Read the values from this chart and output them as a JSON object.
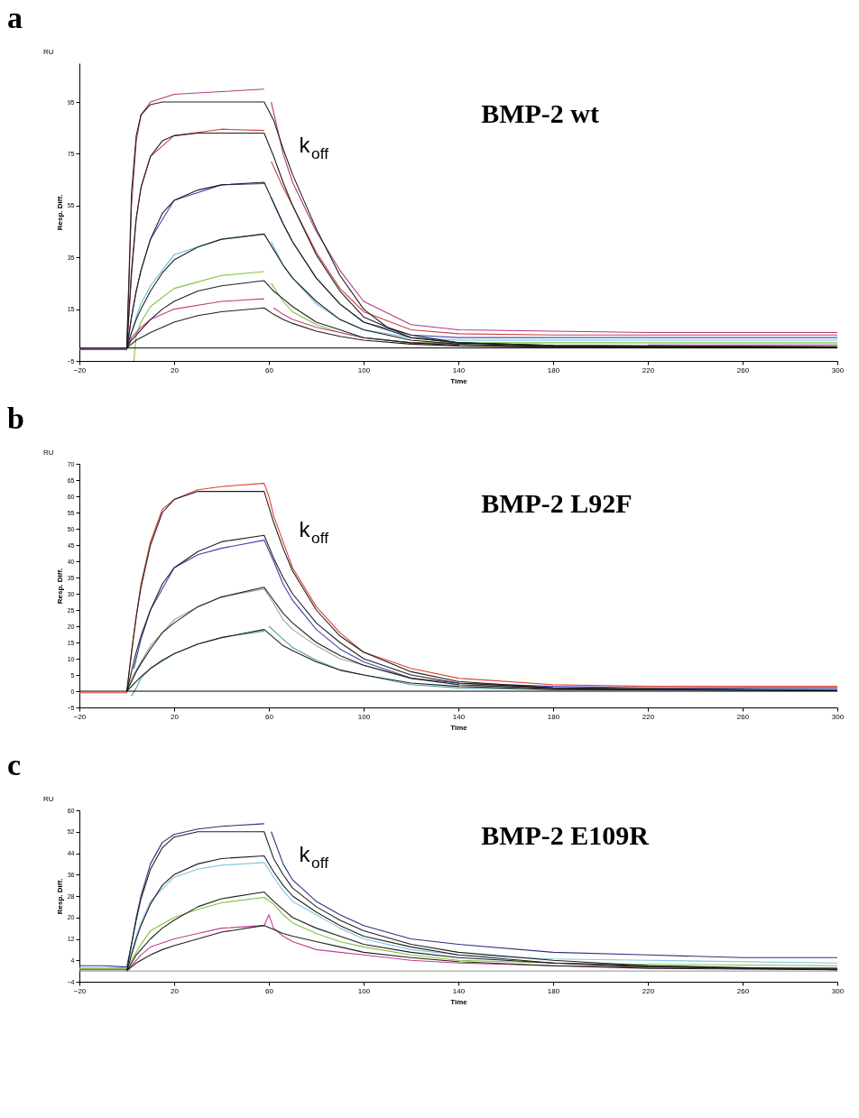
{
  "chart_data": [
    {
      "type": "line",
      "title": "a",
      "xlabel": "Time",
      "ylabel": "Resp. Diff.",
      "annotations": [
        "BMP-2 wt",
        "k$_{off}$",
        "RU"
      ],
      "xlim": [
        -20,
        300
      ],
      "ylim": [
        -5,
        110
      ],
      "xticks": [
        -20,
        20,
        60,
        100,
        140,
        180,
        220,
        260,
        300
      ],
      "yticks": [
        -5,
        15,
        35,
        55,
        75,
        95
      ],
      "ref_lines": [
        {
          "axis": "y",
          "value": 0,
          "color": "#000000"
        }
      ],
      "series": [
        {
          "color": "#b03a80",
          "x": [
            -20,
            0,
            2,
            4,
            6,
            10,
            20,
            40,
            58,
            60,
            61,
            66,
            70,
            80,
            90,
            100,
            120,
            140,
            180,
            220,
            260,
            300
          ],
          "values": [
            -0.5,
            -0.5,
            55,
            80,
            90,
            95,
            98,
            99,
            100,
            null,
            95,
            75,
            64,
            45,
            30,
            18,
            9,
            7,
            6.5,
            6,
            6,
            6
          ]
        },
        {
          "color": "#d04040",
          "x": [
            -20,
            0,
            2,
            4,
            6,
            10,
            20,
            40,
            58,
            60,
            61,
            66,
            70,
            80,
            90,
            100,
            120,
            140,
            180,
            220,
            260,
            300
          ],
          "values": [
            -0.5,
            -0.5,
            28,
            50,
            62,
            74,
            82,
            84.5,
            84,
            null,
            72,
            62,
            55,
            37,
            23,
            14,
            7,
            5.5,
            5,
            5,
            5,
            5
          ]
        },
        {
          "color": "#4050b0",
          "x": [
            -20,
            0,
            2,
            4,
            6,
            10,
            20,
            40,
            58,
            60,
            61,
            66,
            70,
            80,
            90,
            100,
            120,
            140,
            180,
            220,
            260,
            300
          ],
          "values": [
            -0.5,
            -0.5,
            12,
            22,
            30,
            42,
            57,
            63,
            63.5,
            null,
            58,
            48,
            41,
            27,
            17,
            10,
            5,
            4,
            4,
            4,
            4,
            4
          ]
        },
        {
          "color": "#60c0d8",
          "x": [
            0,
            2,
            4,
            6,
            10,
            20,
            40,
            58,
            60,
            61,
            66,
            70,
            80,
            90,
            100,
            120,
            140,
            180,
            220,
            260,
            300
          ],
          "values": [
            0,
            6,
            12,
            17,
            24,
            36,
            42,
            44,
            null,
            41,
            32,
            27,
            17,
            11,
            7,
            4,
            3,
            3,
            3,
            3,
            3
          ]
        },
        {
          "color": "#80c040",
          "x": [
            3,
            4,
            6,
            10,
            20,
            40,
            58,
            60,
            61,
            66,
            70,
            80,
            90,
            100,
            120,
            140,
            180,
            220,
            260,
            300
          ],
          "values": [
            -5,
            5,
            10,
            16,
            23,
            28,
            29.5,
            null,
            25,
            18,
            14,
            9,
            6,
            4,
            2,
            2,
            2,
            2,
            2,
            2
          ]
        },
        {
          "color": "#c04080",
          "x": [
            0,
            2,
            6,
            10,
            20,
            40,
            58,
            60,
            62,
            66,
            70,
            80,
            90,
            100,
            120,
            140,
            180,
            220,
            260,
            300
          ],
          "values": [
            0,
            4,
            8,
            11,
            15,
            18,
            19,
            null,
            15.5,
            13,
            11,
            8,
            6,
            4,
            2,
            1.5,
            null,
            1.2,
            1.2,
            1.2
          ]
        },
        {
          "color": "#202020",
          "x": [
            0,
            2,
            4,
            6,
            10,
            15,
            20,
            40,
            58,
            62,
            66,
            70,
            80,
            90,
            100,
            110,
            120,
            140,
            180,
            300
          ],
          "values": [
            0,
            60,
            82,
            90,
            94,
            95,
            95,
            95,
            95,
            88,
            77,
            67,
            46,
            28,
            15,
            8,
            5,
            2,
            1,
            0.5
          ]
        },
        {
          "color": "#202020",
          "x": [
            0,
            2,
            4,
            6,
            10,
            15,
            20,
            30,
            58,
            62,
            66,
            70,
            80,
            90,
            100,
            120,
            140,
            180,
            300
          ],
          "values": [
            0,
            30,
            50,
            62,
            74,
            80,
            82,
            83,
            83,
            74,
            64,
            55,
            36,
            22,
            12,
            4,
            2,
            1,
            0.5
          ]
        },
        {
          "color": "#202020",
          "x": [
            0,
            2,
            4,
            6,
            10,
            15,
            20,
            30,
            40,
            58,
            62,
            66,
            70,
            80,
            90,
            100,
            120,
            140,
            180,
            300
          ],
          "values": [
            0,
            12,
            22,
            30,
            42,
            52,
            57,
            61,
            63,
            64,
            56,
            48,
            41,
            27,
            17,
            10,
            4,
            2,
            0.8,
            0.3
          ]
        },
        {
          "color": "#202020",
          "x": [
            0,
            2,
            4,
            6,
            10,
            15,
            20,
            30,
            40,
            58,
            62,
            66,
            70,
            80,
            90,
            100,
            120,
            140,
            180,
            300
          ],
          "values": [
            0,
            6,
            11,
            15,
            22,
            29,
            34,
            39,
            42,
            44,
            38,
            32,
            27,
            18,
            11,
            7,
            3,
            1.5,
            0.5,
            0.2
          ]
        },
        {
          "color": "#202020",
          "x": [
            0,
            2,
            4,
            6,
            10,
            15,
            20,
            30,
            40,
            58,
            62,
            66,
            70,
            80,
            90,
            100,
            120,
            140,
            180,
            300
          ],
          "values": [
            0,
            3,
            5,
            7,
            11,
            15,
            18,
            22,
            24,
            26,
            22,
            19,
            16,
            10,
            7,
            4,
            2,
            1,
            0.5,
            0.2
          ]
        },
        {
          "color": "#202020",
          "x": [
            0,
            2,
            4,
            6,
            10,
            15,
            20,
            30,
            40,
            58,
            62,
            66,
            70,
            80,
            90,
            100,
            120,
            140,
            180,
            300
          ],
          "values": [
            0,
            1.5,
            3,
            4,
            6,
            8,
            10,
            12.5,
            14,
            15.5,
            13,
            11,
            9.5,
            6.5,
            4.5,
            3,
            1.5,
            0.8,
            0.3,
            0.1
          ]
        }
      ]
    },
    {
      "type": "line",
      "title": "b",
      "xlabel": "Time",
      "ylabel": "Resp. Diff.",
      "annotations": [
        "BMP-2 L92F",
        "k$_{off}$",
        "RU"
      ],
      "xlim": [
        -20,
        300
      ],
      "ylim": [
        -5,
        70
      ],
      "xticks": [
        -20,
        20,
        60,
        100,
        140,
        180,
        220,
        260,
        300
      ],
      "yticks": [
        -5,
        0,
        5,
        10,
        15,
        20,
        25,
        30,
        35,
        40,
        45,
        50,
        55,
        60,
        65,
        70
      ],
      "ref_lines": [
        {
          "axis": "y",
          "value": 0,
          "color": "#000000"
        }
      ],
      "series": [
        {
          "color": "#e04030",
          "x": [
            -20,
            0,
            2,
            4,
            6,
            10,
            15,
            20,
            30,
            40,
            58,
            60,
            62,
            66,
            70,
            80,
            90,
            100,
            120,
            140,
            180,
            220,
            260,
            300
          ],
          "values": [
            -0.5,
            -0.5,
            12,
            23,
            33,
            46,
            56,
            59,
            62,
            63,
            64,
            60,
            54,
            46,
            38,
            26,
            18,
            12,
            7,
            4,
            2,
            1.5,
            1.5,
            1.5
          ]
        },
        {
          "color": "#4040b0",
          "x": [
            3,
            6,
            10,
            20,
            30,
            40,
            58,
            62,
            66,
            70,
            80,
            90,
            100,
            120,
            140,
            180,
            220,
            300
          ],
          "values": [
            7,
            16,
            25,
            38,
            42,
            44,
            46.5,
            40,
            33,
            28,
            19,
            13,
            9,
            4,
            2.5,
            1.5,
            1,
            1
          ]
        },
        {
          "color": "#a0a890",
          "x": [
            0,
            2,
            6,
            10,
            20,
            30,
            40,
            58,
            62,
            66,
            70,
            80,
            90,
            100,
            120,
            140,
            180,
            300
          ],
          "values": [
            0,
            4,
            9,
            14,
            22,
            26,
            29,
            31.5,
            27,
            22,
            19,
            14,
            10,
            8,
            4,
            2,
            1,
            0.5
          ]
        },
        {
          "color": "#50a0a8",
          "x": [
            2,
            4,
            6,
            10,
            20,
            30,
            40,
            58,
            59,
            60,
            66,
            70,
            80,
            90,
            100,
            120,
            140,
            180,
            300
          ],
          "values": [
            -1.5,
            1,
            4,
            7,
            11.5,
            14.5,
            16.5,
            18.5,
            null,
            20,
            16,
            13.5,
            9.5,
            6.5,
            5,
            2,
            1,
            0.5,
            0.5
          ]
        },
        {
          "color": "#202020",
          "x": [
            0,
            2,
            4,
            6,
            10,
            15,
            20,
            30,
            58,
            62,
            66,
            70,
            80,
            90,
            100,
            120,
            140,
            180,
            220,
            300
          ],
          "values": [
            0,
            12,
            23,
            32,
            45,
            55,
            59,
            61.5,
            61.5,
            52,
            44,
            37,
            25,
            17,
            12,
            6,
            3,
            1,
            0.5,
            0.2
          ]
        },
        {
          "color": "#202020",
          "x": [
            0,
            2,
            4,
            6,
            10,
            15,
            20,
            30,
            40,
            58,
            62,
            66,
            70,
            80,
            90,
            100,
            120,
            140,
            180,
            300
          ],
          "values": [
            0,
            6,
            12,
            17,
            25,
            33,
            38,
            43,
            46,
            48,
            41,
            35,
            30,
            21,
            15,
            10,
            5,
            2.5,
            1,
            0.2
          ]
        },
        {
          "color": "#202020",
          "x": [
            0,
            2,
            4,
            6,
            10,
            15,
            20,
            30,
            40,
            58,
            62,
            66,
            70,
            80,
            90,
            100,
            120,
            140,
            180,
            300
          ],
          "values": [
            0,
            3,
            6,
            8.5,
            13,
            18,
            21,
            26,
            29,
            32,
            28,
            24,
            21,
            15,
            11,
            8,
            4,
            2,
            0.8,
            0.2
          ]
        },
        {
          "color": "#202020",
          "x": [
            0,
            2,
            4,
            6,
            10,
            15,
            20,
            30,
            40,
            58,
            62,
            66,
            70,
            80,
            90,
            100,
            120,
            140,
            180,
            300
          ],
          "values": [
            0,
            1.5,
            3,
            4.5,
            7,
            9.5,
            11.5,
            14.5,
            16.5,
            19,
            16.5,
            14,
            12.5,
            9,
            6.5,
            5,
            2.5,
            1.5,
            0.5,
            0.2
          ]
        }
      ]
    },
    {
      "type": "line",
      "title": "c",
      "xlabel": "Time",
      "ylabel": "Resp. Diff.",
      "annotations": [
        "BMP-2 E109R",
        "k$_{off}$",
        "RU"
      ],
      "xlim": [
        -20,
        300
      ],
      "ylim": [
        -4,
        60
      ],
      "xticks": [
        -20,
        20,
        60,
        100,
        140,
        180,
        220,
        260,
        300
      ],
      "yticks": [
        -4,
        4,
        12,
        20,
        28,
        36,
        44,
        52,
        60
      ],
      "ref_lines": [
        {
          "axis": "y",
          "value": 0,
          "color": "#909090"
        }
      ],
      "series": [
        {
          "color": "#303080",
          "x": [
            -20,
            -10,
            0,
            2,
            4,
            6,
            10,
            15,
            20,
            30,
            40,
            58,
            60,
            61,
            66,
            70,
            80,
            90,
            100,
            120,
            140,
            180,
            220,
            260,
            300
          ],
          "values": [
            2,
            2,
            1.5,
            10,
            20,
            28,
            40,
            48,
            51,
            53,
            54,
            55,
            null,
            52,
            40,
            34,
            26,
            21,
            17,
            12,
            10,
            7,
            6,
            5,
            5
          ]
        },
        {
          "color": "#80c8e0",
          "x": [
            -20,
            0,
            2,
            4,
            6,
            10,
            20,
            30,
            40,
            58,
            62,
            66,
            70,
            80,
            90,
            100,
            120,
            140,
            180,
            220,
            300
          ],
          "values": [
            1,
            1,
            7,
            13,
            18,
            26,
            35,
            38,
            39.5,
            40.5,
            35,
            30,
            26,
            21,
            16,
            12,
            8,
            6,
            4.5,
            4,
            3
          ]
        },
        {
          "color": "#80c040",
          "x": [
            -20,
            0,
            2,
            6,
            10,
            20,
            30,
            40,
            58,
            62,
            66,
            70,
            80,
            90,
            100,
            120,
            140,
            180,
            220,
            300
          ],
          "values": [
            1,
            1,
            4,
            10,
            15,
            20,
            23,
            25.5,
            27.5,
            25,
            21,
            18,
            14,
            11,
            9,
            6,
            4,
            3,
            2.5,
            2
          ]
        },
        {
          "color": "#c04090",
          "x": [
            -20,
            0,
            2,
            6,
            10,
            20,
            30,
            40,
            58,
            60,
            62,
            66,
            70,
            80,
            90,
            100,
            120,
            140,
            180,
            220,
            300
          ],
          "values": [
            0.5,
            0.5,
            2,
            6,
            9,
            12,
            14,
            16,
            17,
            21,
            16,
            13,
            11,
            8,
            7,
            6,
            4,
            3,
            2,
            1.5,
            1
          ]
        },
        {
          "color": "#202020",
          "x": [
            0,
            2,
            4,
            6,
            10,
            15,
            20,
            30,
            58,
            62,
            66,
            70,
            80,
            90,
            100,
            120,
            140,
            180,
            220,
            260,
            300
          ],
          "values": [
            0,
            10,
            19,
            27,
            38,
            46,
            50,
            52,
            52,
            42,
            36,
            31,
            24,
            19,
            15,
            10,
            7,
            4,
            2,
            1,
            1
          ]
        },
        {
          "color": "#202020",
          "x": [
            0,
            2,
            4,
            6,
            10,
            15,
            20,
            30,
            40,
            58,
            62,
            66,
            70,
            80,
            90,
            100,
            120,
            140,
            180,
            220,
            300
          ],
          "values": [
            0,
            6,
            12,
            17,
            25,
            32,
            36,
            40,
            42,
            43,
            37,
            32,
            28,
            22,
            17,
            13,
            9,
            6,
            3,
            2,
            0.5
          ]
        },
        {
          "color": "#202020",
          "x": [
            0,
            2,
            4,
            6,
            10,
            15,
            20,
            30,
            40,
            58,
            62,
            66,
            70,
            80,
            90,
            100,
            120,
            140,
            180,
            220,
            300
          ],
          "values": [
            0,
            3,
            6,
            8,
            12,
            16,
            19,
            24,
            27,
            29.5,
            26,
            23,
            20,
            16,
            13,
            10,
            7,
            5,
            3,
            1.5,
            0.5
          ]
        },
        {
          "color": "#202020",
          "x": [
            0,
            2,
            4,
            6,
            10,
            15,
            20,
            30,
            40,
            58,
            62,
            66,
            70,
            80,
            90,
            100,
            120,
            140,
            180,
            220,
            300
          ],
          "values": [
            0,
            1.5,
            3,
            4,
            6,
            8,
            9.5,
            12,
            14.5,
            17,
            15.5,
            14,
            13,
            11,
            9,
            7,
            5,
            3.5,
            2,
            1,
            0.5
          ]
        }
      ]
    }
  ]
}
